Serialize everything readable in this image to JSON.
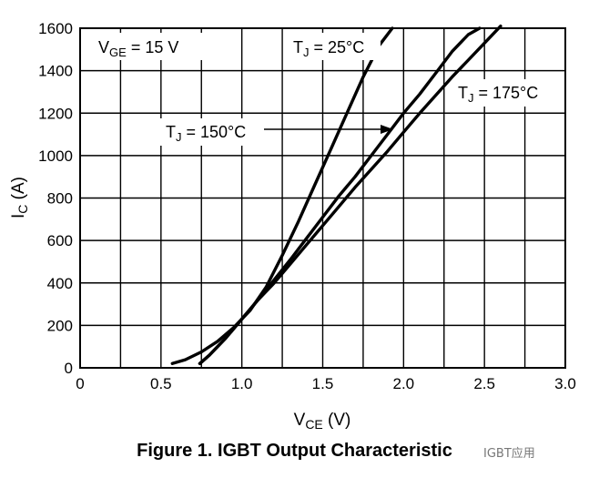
{
  "chart_data": {
    "type": "line",
    "title": "Figure 1. IGBT Output Characteristic",
    "xlabel": {
      "main": "V",
      "sub": "CE",
      "unit": " (V)"
    },
    "ylabel": {
      "main": "I",
      "sub": "C",
      "unit": " (A)"
    },
    "xlim": [
      0,
      3.0
    ],
    "ylim": [
      0,
      1600
    ],
    "x_ticks": [
      "0",
      "0.5",
      "1.0",
      "1.5",
      "2.0",
      "2.5",
      "3.0"
    ],
    "y_ticks": [
      "0",
      "200",
      "400",
      "600",
      "800",
      "1000",
      "1200",
      "1400",
      "1600"
    ],
    "grid": true,
    "series": [
      {
        "name": "TJ = 25°C",
        "x": [
          0.57,
          0.65,
          0.75,
          0.85,
          0.95,
          1.05,
          1.15,
          1.25,
          1.35,
          1.45,
          1.55,
          1.65,
          1.75,
          1.85,
          1.93
        ],
        "y": [
          20,
          38,
          75,
          125,
          190,
          270,
          380,
          530,
          690,
          860,
          1030,
          1200,
          1370,
          1520,
          1600
        ]
      },
      {
        "name": "TJ = 150°C",
        "x": [
          0.74,
          0.8,
          0.9,
          1.0,
          1.1,
          1.2,
          1.3,
          1.4,
          1.5,
          1.6,
          1.7,
          1.8,
          1.9,
          2.0,
          2.1,
          2.2,
          2.3,
          2.4,
          2.47
        ],
        "y": [
          20,
          60,
          140,
          230,
          320,
          415,
          510,
          610,
          710,
          810,
          900,
          1000,
          1100,
          1200,
          1290,
          1390,
          1490,
          1570,
          1600
        ]
      },
      {
        "name": "TJ = 175°C",
        "x": [
          0.74,
          0.8,
          0.9,
          1.0,
          1.1,
          1.2,
          1.3,
          1.4,
          1.5,
          1.6,
          1.7,
          1.8,
          1.9,
          2.0,
          2.1,
          2.2,
          2.3,
          2.4,
          2.5,
          2.6
        ],
        "y": [
          20,
          60,
          140,
          230,
          320,
          400,
          490,
          580,
          670,
          760,
          850,
          935,
          1020,
          1110,
          1200,
          1285,
          1370,
          1450,
          1530,
          1610
        ]
      }
    ],
    "annotations": {
      "vge": {
        "main": "V",
        "sub": "GE",
        "rest": " = 15 V"
      },
      "tj25": {
        "main": "T",
        "sub": "J",
        "rest": " = 25°C"
      },
      "tj175": {
        "main": "T",
        "sub": "J",
        "rest": " = 175°C"
      },
      "tj150": {
        "main": "T",
        "sub": "J",
        "rest": " = 150°C"
      }
    }
  },
  "watermark": "IGBT应用"
}
